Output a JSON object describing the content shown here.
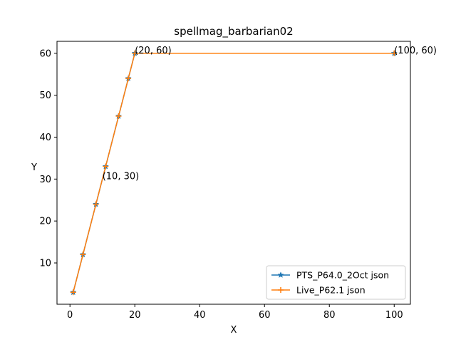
{
  "chart_data": {
    "type": "line",
    "title": "spellmag_barbarian02",
    "xlabel": "X",
    "ylabel": "Y",
    "xlim": [
      -4,
      105
    ],
    "ylim": [
      0.15,
      62.85
    ],
    "xticks": [
      0,
      20,
      40,
      60,
      80,
      100
    ],
    "yticks": [
      10,
      20,
      30,
      40,
      50,
      60
    ],
    "grid": false,
    "legend_position": "lower-right",
    "series": [
      {
        "name": "PTS_P64.0_2Oct json",
        "color": "#1f77b4",
        "marker": "star",
        "x": [
          1,
          4,
          8,
          11,
          15,
          18,
          20,
          100
        ],
        "y": [
          3,
          12,
          24,
          33,
          45,
          54,
          60,
          60
        ]
      },
      {
        "name": "Live_P62.1 json",
        "color": "#ff7f0e",
        "marker": "plus",
        "x": [
          1,
          4,
          8,
          11,
          15,
          18,
          20,
          100
        ],
        "y": [
          3,
          12,
          24,
          33,
          45,
          54,
          60,
          60
        ]
      }
    ],
    "annotations": [
      {
        "text": "(10, 30)",
        "x": 10,
        "y": 30
      },
      {
        "text": "(20, 60)",
        "x": 20,
        "y": 60
      },
      {
        "text": "(100, 60)",
        "x": 100,
        "y": 60
      }
    ]
  }
}
